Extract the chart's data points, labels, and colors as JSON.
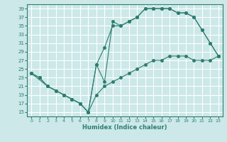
{
  "xlabel": "Humidex (Indice chaleur)",
  "bg_color": "#cce8e8",
  "grid_color": "#ffffff",
  "line_color": "#2e7d70",
  "xlim": [
    -0.5,
    23.5
  ],
  "ylim": [
    14,
    40
  ],
  "xticks": [
    0,
    1,
    2,
    3,
    4,
    5,
    6,
    7,
    8,
    9,
    10,
    11,
    12,
    13,
    14,
    15,
    16,
    17,
    18,
    19,
    20,
    21,
    22,
    23
  ],
  "yticks": [
    15,
    17,
    19,
    21,
    23,
    25,
    27,
    29,
    31,
    33,
    35,
    37,
    39
  ],
  "line1_x": [
    0,
    1,
    2,
    3,
    4,
    5,
    6,
    7,
    8,
    9,
    10,
    11,
    12,
    13,
    14,
    15,
    16,
    17,
    18,
    19,
    20,
    21,
    22,
    23
  ],
  "line1_y": [
    24,
    23,
    21,
    20,
    19,
    18,
    17,
    15,
    19,
    21,
    22,
    23,
    24,
    25,
    26,
    27,
    27,
    28,
    28,
    28,
    27,
    27,
    27,
    28
  ],
  "line2_x": [
    0,
    1,
    2,
    3,
    4,
    5,
    6,
    7,
    8,
    9,
    10,
    11,
    12,
    13,
    14,
    15,
    16,
    17,
    18,
    19,
    20,
    21,
    22,
    23
  ],
  "line2_y": [
    24,
    23,
    21,
    20,
    19,
    18,
    17,
    15,
    26,
    30,
    35,
    35,
    36,
    37,
    39,
    39,
    39,
    39,
    38,
    38,
    37,
    34,
    31,
    28
  ],
  "line3_x": [
    0,
    2,
    3,
    4,
    5,
    6,
    7,
    8,
    9,
    10,
    11,
    12,
    13,
    14,
    15,
    16,
    17,
    18,
    19,
    20,
    21,
    22,
    23
  ],
  "line3_y": [
    24,
    21,
    20,
    19,
    18,
    17,
    15,
    26,
    22,
    36,
    35,
    36,
    37,
    39,
    39,
    39,
    39,
    38,
    38,
    37,
    34,
    31,
    28
  ]
}
